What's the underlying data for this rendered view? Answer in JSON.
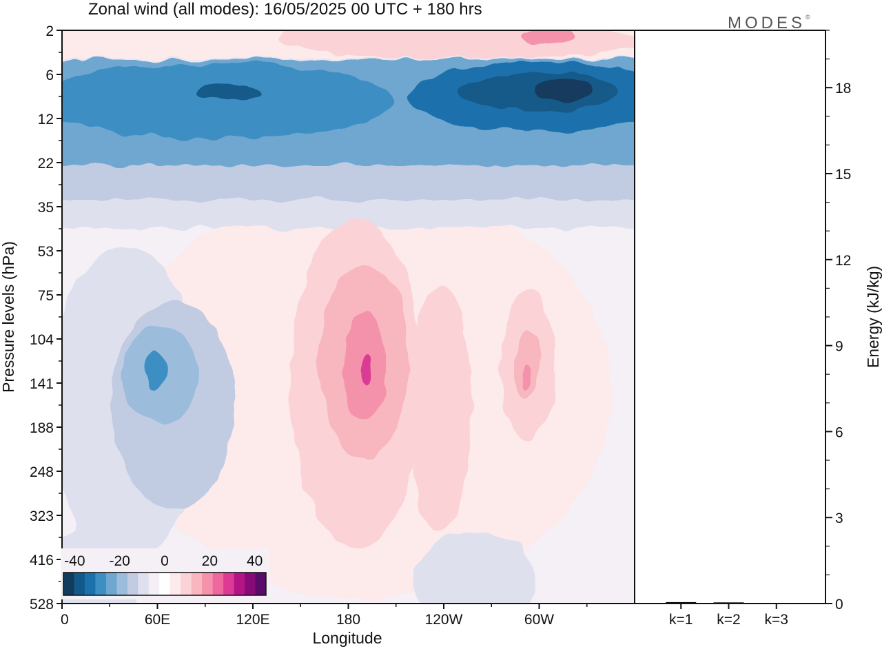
{
  "title": "Zonal wind (all modes):  16/05/2025  00 UTC  + 180 hrs",
  "brand": "MODES",
  "brand_mark": "©",
  "colors": {
    "negative": [
      "#123b5e",
      "#135a8a",
      "#1a71ac",
      "#3c8ec3",
      "#6fa7d0",
      "#9bbcdb",
      "#c1cbe2",
      "#dfe0ee",
      "#f3eff5"
    ],
    "positive": [
      "#fdeaea",
      "#fbd3d6",
      "#f8b6bf",
      "#f592ab",
      "#ee679f",
      "#dc3a95",
      "#b31684",
      "#860b78",
      "#5a0a6b"
    ],
    "zero": "#ffffff"
  },
  "chart_data": [
    {
      "type": "heatmap",
      "title": "Zonal wind (all modes):  16/05/2025  00 UTC  + 180 hrs",
      "xlabel": "Longitude",
      "ylabel": "Pressure levels (hPa)",
      "x_ticks": [
        "0",
        "60E",
        "120E",
        "180",
        "120W",
        "60W"
      ],
      "y_ticks": [
        "2",
        "6",
        "12",
        "22",
        "35",
        "53",
        "75",
        "104",
        "141",
        "188",
        "248",
        "323",
        "416",
        "528"
      ],
      "y_scale": "log-like (model levels)",
      "colorbar": {
        "ticks": [
          "-40",
          "-20",
          "0",
          "20",
          "40"
        ],
        "range": [
          -45,
          45
        ],
        "step": 5
      },
      "features": [
        {
          "label": "easterly jet",
          "pressure_range_hPa": [
            6,
            22
          ],
          "min_value": -40
        },
        {
          "label": "westerly layer",
          "pressure_range_hPa": [
            2,
            4
          ],
          "max_value": 25
        },
        {
          "label": "westerly maximum near 180",
          "pressure_hPa": 120,
          "max_value": 27
        },
        {
          "label": "westerly maximum near 60W",
          "pressure_hPa": 130,
          "max_value": 22
        },
        {
          "label": "easterly minimum near 60E",
          "pressure_hPa": 125,
          "min_value": -20
        }
      ]
    },
    {
      "type": "bar",
      "categories": [
        "k=1",
        "k=2",
        "k=3"
      ],
      "values": [
        0.05,
        0.04,
        0.02
      ],
      "ylabel": "Energy (kJ/kg)",
      "ylim": [
        0,
        20
      ],
      "y_ticks": [
        "0",
        "3",
        "6",
        "9",
        "12",
        "15",
        "18"
      ]
    }
  ]
}
